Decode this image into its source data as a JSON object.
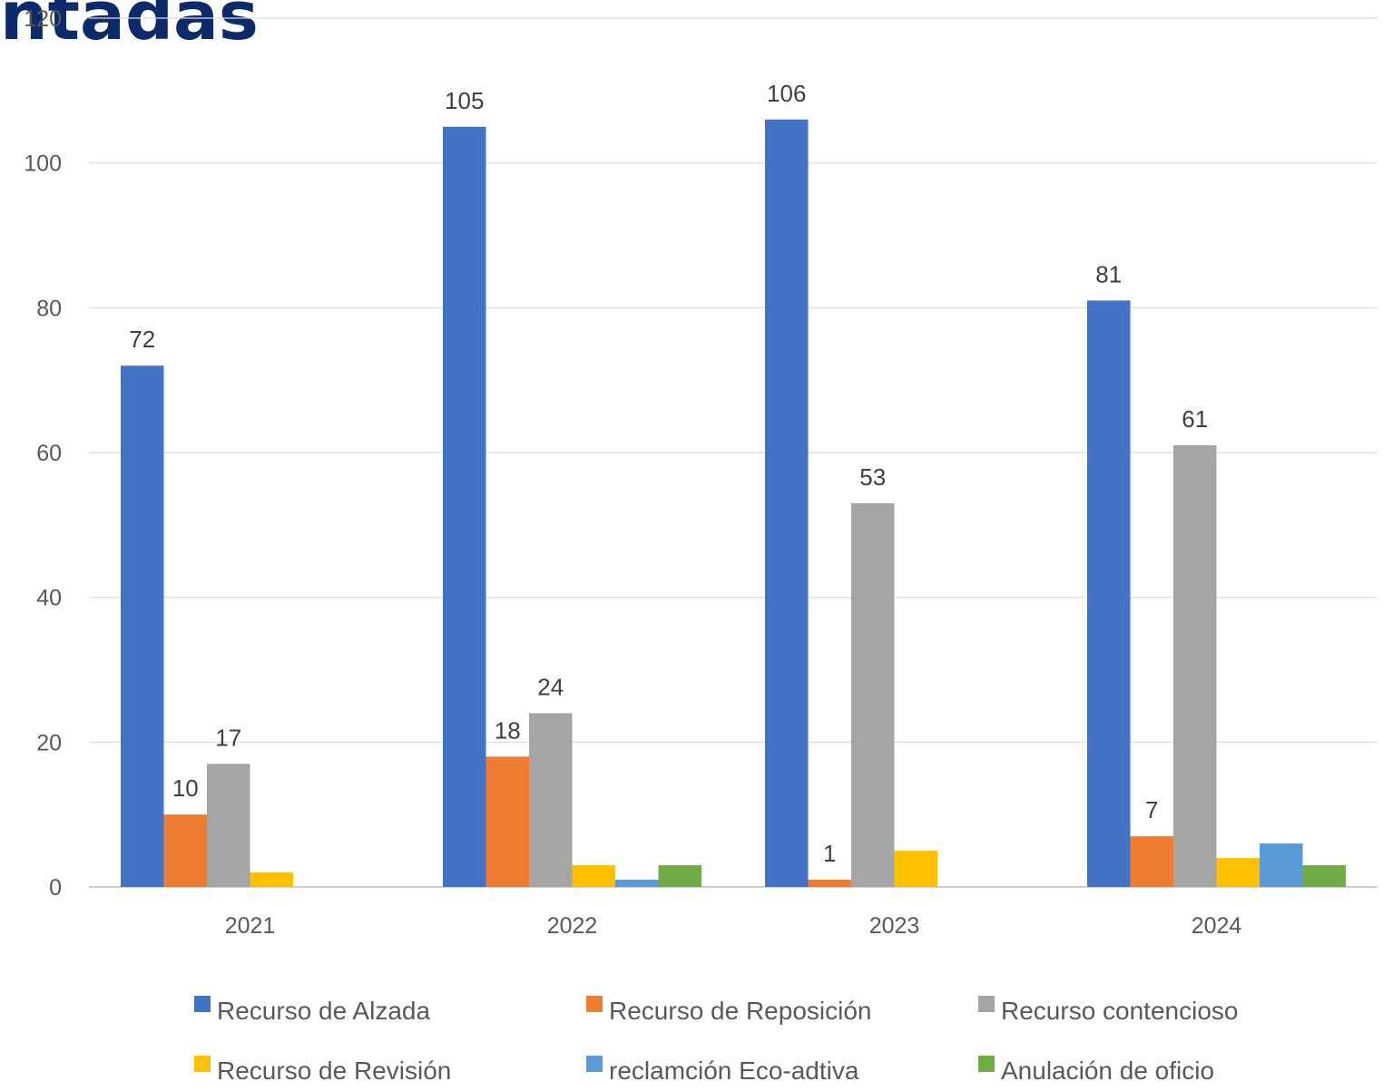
{
  "title_fragment": "ntadas",
  "colors": {
    "title": "#0d2a6b",
    "grid": "#d9d9d9",
    "axis": "#bfbfbf"
  },
  "chart_data": {
    "type": "bar",
    "categories": [
      "2021",
      "2022",
      "2023",
      "2024"
    ],
    "series": [
      {
        "name": "Recurso de Alzada",
        "color": "#4472C4",
        "values": [
          72,
          105,
          106,
          81
        ],
        "labels": [
          "72",
          "105",
          "106",
          "81"
        ]
      },
      {
        "name": "Recurso de Reposición",
        "color": "#ED7D31",
        "values": [
          10,
          18,
          1,
          7
        ],
        "labels": [
          "10",
          "18",
          "1",
          "7"
        ]
      },
      {
        "name": "Recurso contencioso",
        "color": "#A5A5A5",
        "values": [
          17,
          24,
          53,
          61
        ],
        "labels": [
          "17",
          "24",
          "53",
          "61"
        ]
      },
      {
        "name": "Recurso de Revisión",
        "color": "#FFC000",
        "values": [
          2,
          3,
          5,
          4
        ],
        "labels": [
          "",
          "",
          "",
          ""
        ]
      },
      {
        "name": "reclamción Eco-adtiva",
        "color": "#5B9BD5",
        "values": [
          0,
          1,
          0,
          6
        ],
        "labels": [
          "",
          "",
          "",
          ""
        ]
      },
      {
        "name": "Anulación de oficio",
        "color": "#70AD47",
        "values": [
          0,
          3,
          0,
          3
        ],
        "labels": [
          "",
          "",
          "",
          ""
        ]
      }
    ],
    "yticks": [
      "0",
      "20",
      "40",
      "60",
      "80",
      "100",
      "120"
    ],
    "ylim": [
      0,
      120
    ],
    "grid": true,
    "legend_position": "bottom"
  }
}
